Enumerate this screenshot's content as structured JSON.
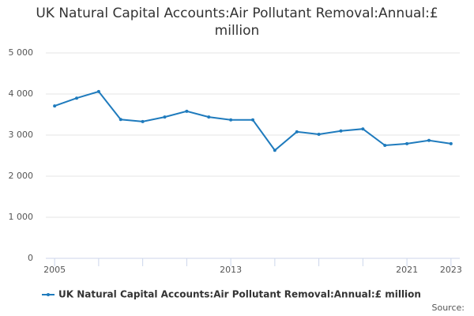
{
  "chart_data": {
    "type": "line",
    "title": "UK Natural Capital Accounts:Air Pollutant Removal:Annual:£ million",
    "x": [
      2005,
      2006,
      2007,
      2008,
      2009,
      2010,
      2011,
      2012,
      2013,
      2014,
      2015,
      2016,
      2017,
      2018,
      2019,
      2020,
      2021,
      2022,
      2023
    ],
    "series": [
      {
        "name": "UK Natural Capital Accounts:Air Pollutant Removal:Annual:£ million",
        "color": "#1f7bbd",
        "values": [
          3710,
          3900,
          4060,
          3380,
          3330,
          3440,
          3580,
          3440,
          3370,
          3370,
          2630,
          3080,
          3020,
          3100,
          3150,
          2750,
          2790,
          2870,
          2790
        ]
      }
    ],
    "xlim": [
      2004.6,
      2023.4
    ],
    "xticks": [
      2005,
      2013,
      2021,
      2023
    ],
    "ylim": [
      0,
      5000
    ],
    "yticks": [
      0,
      {
        "value": 1000,
        "label": "1 000"
      },
      {
        "value": 2000,
        "label": "2 000"
      },
      {
        "value": 3000,
        "label": "3 000"
      },
      {
        "value": 4000,
        "label": "4 000"
      },
      {
        "value": 5000,
        "label": "5 000"
      }
    ],
    "grid": true,
    "source": "Source:"
  }
}
